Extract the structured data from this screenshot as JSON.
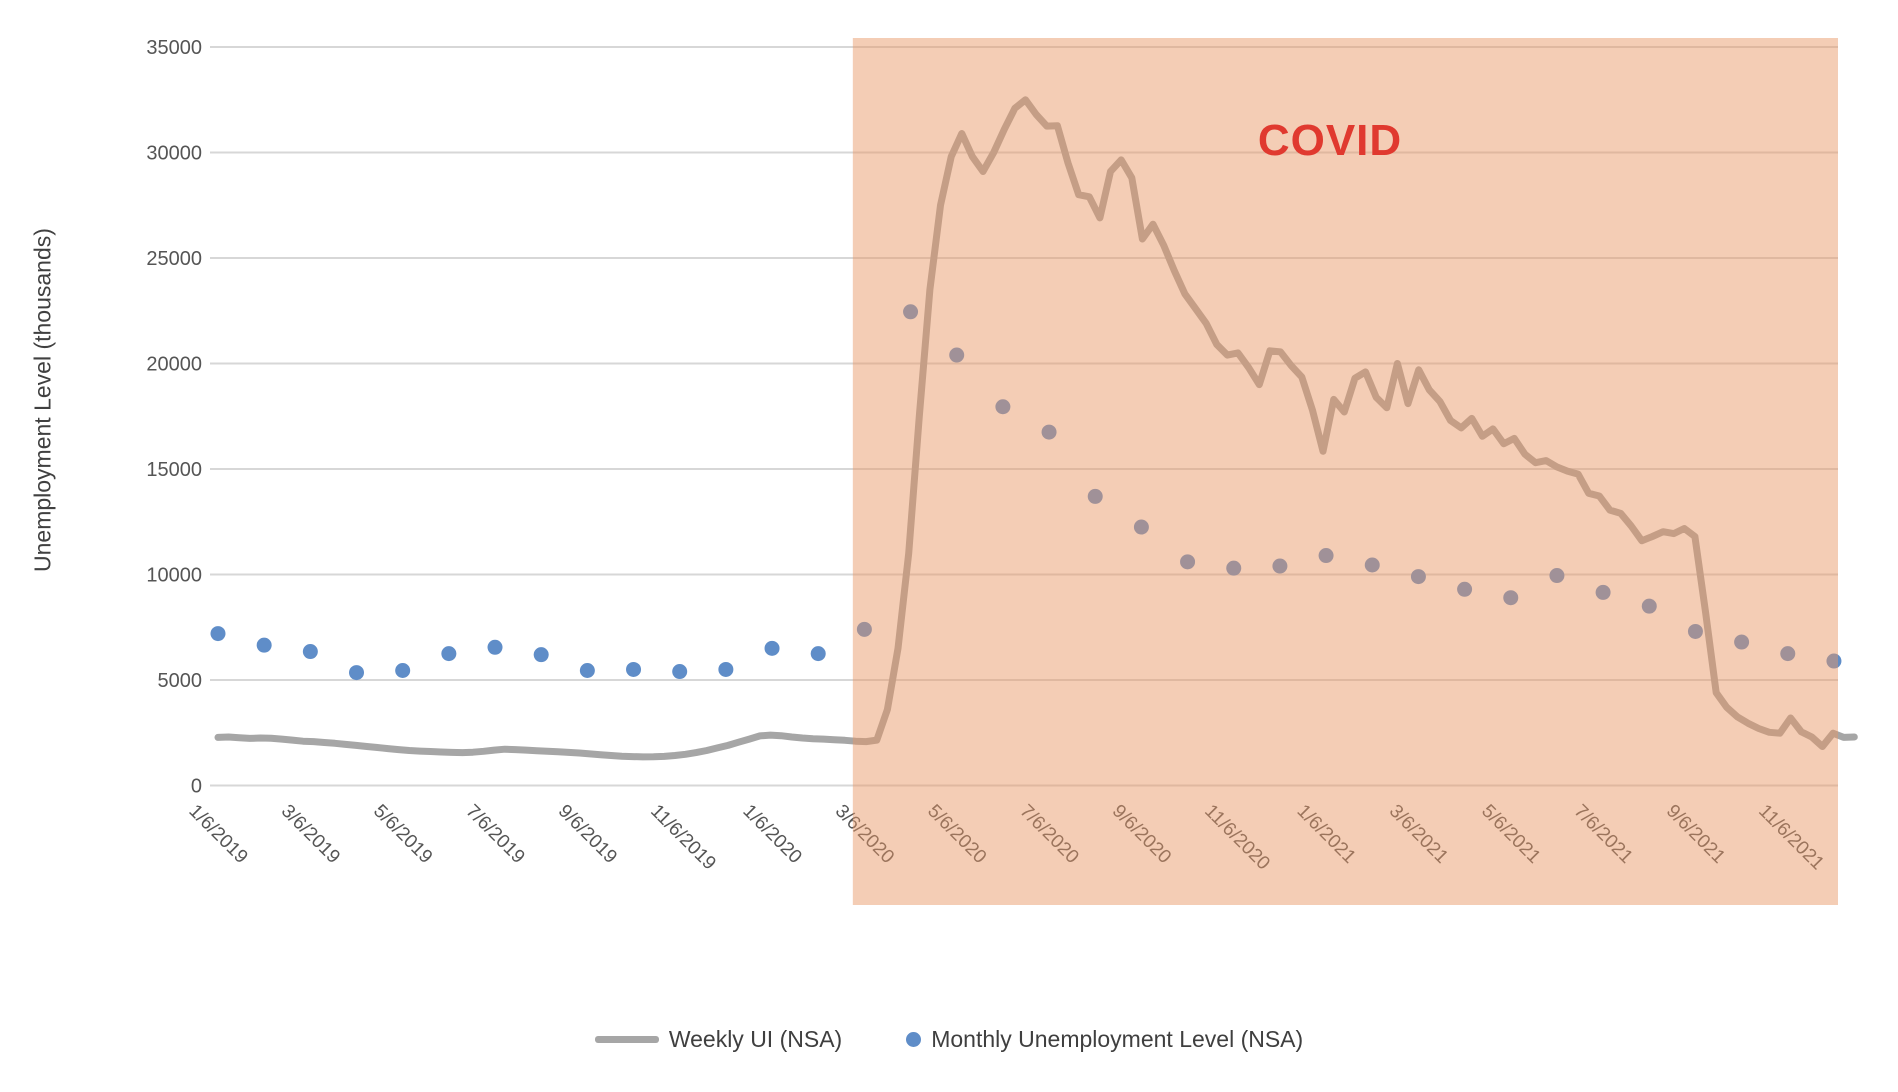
{
  "chart_data": {
    "type": "line",
    "title": "",
    "ylabel": "Unemployment Level (thousands)",
    "ylim": [
      0,
      35000
    ],
    "y_ticks": [
      35000,
      30000,
      25000,
      20000,
      15000,
      10000,
      5000,
      0
    ],
    "grid": "horizontal",
    "legend_position": "bottom",
    "x_tick_labels": [
      "1/6/2019",
      "3/6/2019",
      "5/6/2019",
      "7/6/2019",
      "9/6/2019",
      "11/6/2019",
      "1/6/2020",
      "3/6/2020",
      "5/6/2020",
      "7/6/2020",
      "9/6/2020",
      "11/6/2020",
      "1/6/2021",
      "3/6/2021",
      "5/6/2021",
      "7/6/2021",
      "9/6/2021",
      "11/6/2021"
    ],
    "annotation": {
      "label": "COVID",
      "color": "#e0392f",
      "region_start": "3/2020",
      "region_end": "end of chart",
      "region_fill": "#f4cbb4"
    },
    "series": [
      {
        "name": "Weekly UI (NSA)",
        "type": "line",
        "color": "#a6a6a6",
        "interval": "weekly",
        "start": "1/5/2019",
        "values": [
          2280,
          2300,
          2260,
          2230,
          2250,
          2240,
          2200,
          2150,
          2100,
          2080,
          2040,
          2000,
          1950,
          1900,
          1850,
          1800,
          1750,
          1700,
          1660,
          1630,
          1610,
          1590,
          1570,
          1560,
          1580,
          1620,
          1680,
          1720,
          1700,
          1680,
          1650,
          1620,
          1600,
          1570,
          1540,
          1500,
          1460,
          1420,
          1390,
          1370,
          1355,
          1360,
          1380,
          1420,
          1480,
          1560,
          1660,
          1780,
          1900,
          2050,
          2200,
          2350,
          2390,
          2360,
          2300,
          2250,
          2220,
          2200,
          2170,
          2140,
          2100,
          2080,
          2150,
          3600,
          6500,
          11000,
          17500,
          23500,
          27500,
          29800,
          30900,
          29800,
          29100,
          30000,
          31100,
          32100,
          32500,
          31800,
          31250,
          31270,
          29500,
          28000,
          27900,
          26900,
          29100,
          29650,
          28800,
          25900,
          26600,
          25600,
          24400,
          23300,
          22600,
          21900,
          20900,
          20400,
          20500,
          19800,
          19000,
          20600,
          20550,
          19900,
          19360,
          17800,
          15840,
          18300,
          17700,
          19300,
          19600,
          18400,
          17900,
          20000,
          18100,
          19700,
          18750,
          18200,
          17300,
          16950,
          17400,
          16550,
          16900,
          16200,
          16450,
          15700,
          15300,
          15400,
          15100,
          14900,
          14760,
          13850,
          13720,
          13050,
          12900,
          12300,
          11600,
          11800,
          12030,
          11940,
          12180,
          11800,
          8200,
          4400,
          3700,
          3250,
          2950,
          2700,
          2520,
          2480,
          3200,
          2550,
          2300,
          1850,
          2480,
          2280,
          2300
        ]
      },
      {
        "name": "Monthly Unemployment Level (NSA)",
        "type": "scatter",
        "color": "#5f8dc8",
        "interval": "monthly",
        "start": "1/2019",
        "values": [
          7200,
          6650,
          6350,
          5350,
          5450,
          6250,
          6550,
          6200,
          5450,
          5500,
          5400,
          5500,
          6500,
          6250,
          7400,
          22450,
          20400,
          17950,
          16750,
          13700,
          12250,
          10600,
          10300,
          10400,
          10900,
          10450,
          9900,
          9300,
          8900,
          9950,
          9150,
          8500,
          7300,
          6800,
          6250,
          5900
        ]
      }
    ]
  },
  "colors": {
    "gridline": "#d7d7d7",
    "axis_text": "#555555",
    "covid_overlay": "rgba(233,150,101,0.48)",
    "weekly_line": "#a6a6a6",
    "monthly_dot": "#5f8dc8",
    "covid_text": "#e0392f"
  }
}
